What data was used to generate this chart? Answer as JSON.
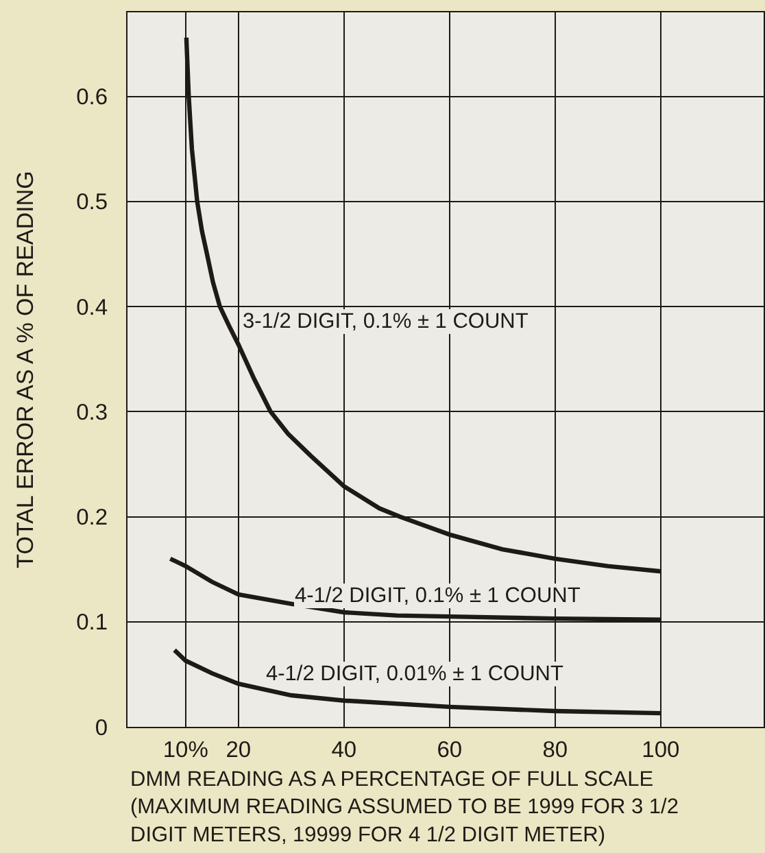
{
  "chart_data": {
    "type": "line",
    "xlabel": "DMM READING AS A PERCENTAGE OF FULL SCALE\n(MAXIMUM READING ASSUMED TO BE 1999 FOR 3 1/2\nDIGIT METERS, 19999 FOR 4 1/2 DIGIT METER)",
    "ylabel": "TOTAL ERROR AS A % OF READING",
    "xlim": [
      -1,
      119.5
    ],
    "xticks": [
      {
        "value": 10,
        "label": "10%"
      },
      20,
      40,
      60,
      80,
      100
    ],
    "ylim": [
      0,
      0.68
    ],
    "yticks": [
      0,
      0.1,
      0.2,
      0.3,
      0.4,
      0.5,
      0.6
    ],
    "grid": true,
    "series": [
      {
        "name": "3-1/2 DIGIT, 0.1% ± 1 COUNT",
        "color": "#1e1a17",
        "x": [
          10.15,
          10.6,
          11.2,
          12.2,
          13.1,
          14.1,
          15.2,
          16.5,
          18.2,
          20,
          23,
          26.1,
          29.4,
          33.7,
          40,
          46.7,
          50.6,
          60,
          70,
          80,
          90,
          100
        ],
        "values": [
          0.656,
          0.6,
          0.55,
          0.5,
          0.472,
          0.449,
          0.423,
          0.4,
          0.382,
          0.364,
          0.331,
          0.3,
          0.279,
          0.258,
          0.229,
          0.208,
          0.2,
          0.183,
          0.169,
          0.16,
          0.153,
          0.148
        ]
      },
      {
        "name": "4-1/2 DIGIT, 0.1% ± 1 COUNT",
        "color": "#1e1a17",
        "x": [
          7.1,
          10,
          15,
          20,
          30,
          40,
          50,
          60,
          80,
          100
        ],
        "values": [
          0.16,
          0.153,
          0.138,
          0.126,
          0.117,
          0.109,
          0.106,
          0.105,
          0.103,
          0.102
        ]
      },
      {
        "name": "4-1/2 DIGIT, 0.01% ± 1 COUNT",
        "color": "#1e1a17",
        "x": [
          7.9,
          10,
          15,
          20,
          30,
          40,
          60,
          80,
          100
        ],
        "values": [
          0.073,
          0.063,
          0.051,
          0.041,
          0.03,
          0.025,
          0.019,
          0.015,
          0.013
        ]
      }
    ]
  }
}
